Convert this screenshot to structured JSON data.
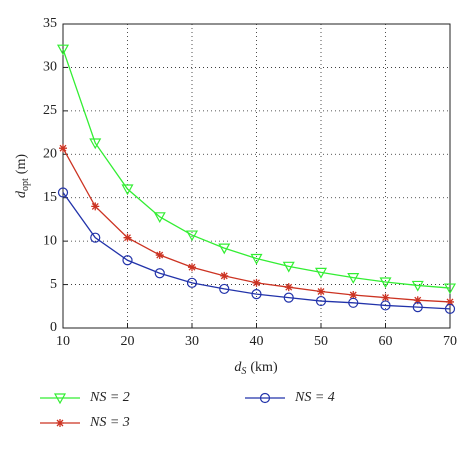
{
  "chart_data": {
    "type": "line",
    "xlabel": {
      "symbol": "d",
      "subscript": "S",
      "unit": "(km)"
    },
    "ylabel": {
      "symbol": "d",
      "subscript": "opt",
      "unit": "(m)"
    },
    "x": [
      10,
      15,
      20,
      25,
      30,
      35,
      40,
      45,
      50,
      55,
      60,
      65,
      70
    ],
    "series": [
      {
        "name": "NS = 2",
        "color": "#33ee33",
        "marker": "triangle-down",
        "values": [
          32.1,
          21.3,
          16.0,
          12.8,
          10.7,
          9.2,
          8.0,
          7.1,
          6.4,
          5.8,
          5.3,
          4.9,
          4.6
        ]
      },
      {
        "name": "NS = 3",
        "color": "#cc3322",
        "marker": "asterisk",
        "values": [
          20.7,
          14.0,
          10.4,
          8.4,
          7.0,
          6.0,
          5.2,
          4.7,
          4.2,
          3.8,
          3.5,
          3.2,
          3.0
        ]
      },
      {
        "name": "NS = 4",
        "color": "#2233aa",
        "marker": "circle",
        "values": [
          15.6,
          10.4,
          7.8,
          6.3,
          5.2,
          4.5,
          3.9,
          3.5,
          3.1,
          2.9,
          2.6,
          2.4,
          2.2
        ]
      }
    ],
    "xlim": [
      10,
      70
    ],
    "xticks": [
      10,
      20,
      30,
      40,
      50,
      60,
      70
    ],
    "ylim": [
      0,
      35
    ],
    "yticks": [
      0,
      5,
      10,
      15,
      20,
      25,
      30,
      35
    ],
    "grid": true,
    "legend": "below"
  }
}
